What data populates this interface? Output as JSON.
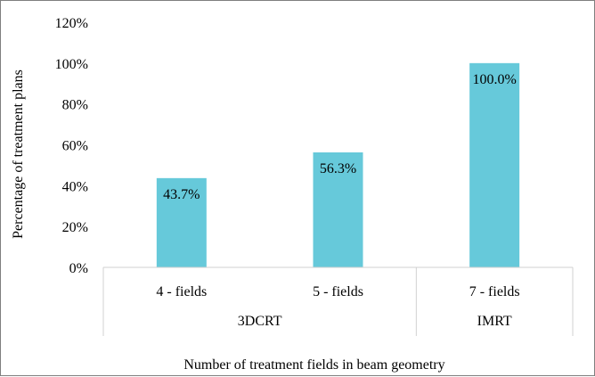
{
  "chart_data": {
    "type": "bar",
    "title": "",
    "xlabel": "Number of treatment fields in beam geometry",
    "ylabel": "Percentage of treatment plans",
    "categories": [
      "4 - fields",
      "5 - fields",
      "7 - fields"
    ],
    "groups": [
      {
        "label": "3DCRT",
        "categories": [
          "4 - fields",
          "5 - fields"
        ]
      },
      {
        "label": "IMRT",
        "categories": [
          "7 - fields"
        ]
      }
    ],
    "values": [
      43.7,
      56.3,
      100.0
    ],
    "data_labels": [
      "43.7%",
      "56.3%",
      "100.0%"
    ],
    "yticks": [
      "0%",
      "20%",
      "40%",
      "60%",
      "80%",
      "100%",
      "120%"
    ],
    "ylim": [
      0,
      120
    ],
    "grid": false,
    "legend": "none",
    "bar_color": "#66c9da"
  }
}
